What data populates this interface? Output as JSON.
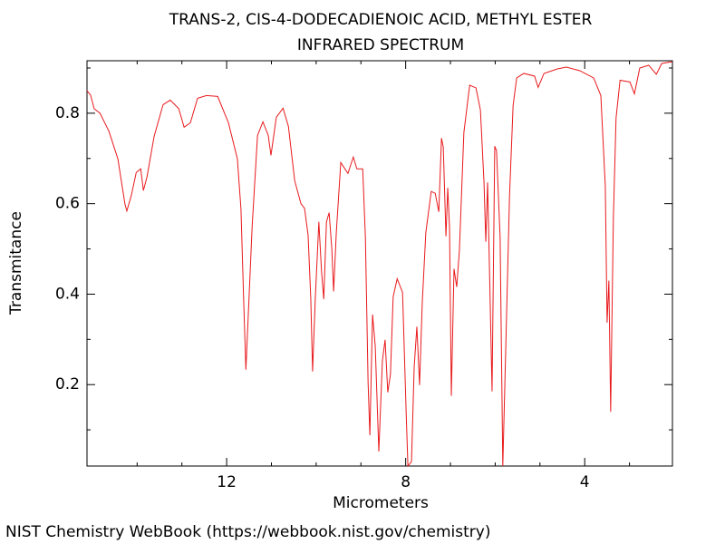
{
  "chart_data": {
    "type": "line",
    "title": "TRANS-2, CIS-4-DODECADIENOIC ACID, METHYL ESTER",
    "subtitle": "INFRARED SPECTRUM",
    "x_label": "Micrometers",
    "y_label": "Transmitance",
    "source": "NIST Chemistry WebBook (https://webbook.nist.gov/chemistry)",
    "color": "#e8191c",
    "xlim": [
      15.12,
      2.04
    ],
    "ylim": [
      0.02,
      0.916
    ],
    "xticks": [
      12,
      8,
      4
    ],
    "xminorticks": [
      14,
      13,
      11,
      10,
      9,
      7,
      6,
      5,
      3
    ],
    "yticks": [
      0.2,
      0.4,
      0.6,
      0.8
    ],
    "yminorticks": [
      0.1,
      0.3,
      0.5,
      0.7,
      0.9
    ],
    "x": [
      15.12,
      15.04,
      14.96,
      14.83,
      14.63,
      14.43,
      14.27,
      14.23,
      14.13,
      14.02,
      13.92,
      13.86,
      13.78,
      13.62,
      13.42,
      13.26,
      13.07,
      12.95,
      12.81,
      12.65,
      12.45,
      12.2,
      11.96,
      11.76,
      11.68,
      11.62,
      11.57,
      11.51,
      11.43,
      11.31,
      11.19,
      11.07,
      11.01,
      10.89,
      10.74,
      10.62,
      10.48,
      10.34,
      10.26,
      10.18,
      10.12,
      10.08,
      10.02,
      9.94,
      9.88,
      9.83,
      9.77,
      9.71,
      9.65,
      9.61,
      9.55,
      9.45,
      9.29,
      9.17,
      9.09,
      8.96,
      8.9,
      8.84,
      8.8,
      8.74,
      8.68,
      8.6,
      8.52,
      8.46,
      8.4,
      8.34,
      8.28,
      8.19,
      8.07,
      7.99,
      7.95,
      7.87,
      7.81,
      7.75,
      7.69,
      7.63,
      7.55,
      7.43,
      7.34,
      7.26,
      7.2,
      7.16,
      7.1,
      7.06,
      7.02,
      6.98,
      6.92,
      6.86,
      6.8,
      6.7,
      6.57,
      6.43,
      6.33,
      6.25,
      6.21,
      6.17,
      6.13,
      6.07,
      6.01,
      5.97,
      5.89,
      5.83,
      5.77,
      5.68,
      5.6,
      5.52,
      5.36,
      5.12,
      5.04,
      4.91,
      4.61,
      4.41,
      4.11,
      3.8,
      3.64,
      3.54,
      3.5,
      3.46,
      3.42,
      3.36,
      3.3,
      3.21,
      2.99,
      2.89,
      2.77,
      2.57,
      2.4,
      2.28,
      2.04
    ],
    "values": [
      0.85,
      0.84,
      0.81,
      0.8,
      0.76,
      0.699,
      0.598,
      0.584,
      0.618,
      0.669,
      0.677,
      0.629,
      0.659,
      0.749,
      0.819,
      0.829,
      0.81,
      0.769,
      0.779,
      0.833,
      0.839,
      0.837,
      0.779,
      0.699,
      0.588,
      0.387,
      0.233,
      0.369,
      0.55,
      0.751,
      0.781,
      0.751,
      0.707,
      0.791,
      0.811,
      0.771,
      0.651,
      0.6,
      0.59,
      0.53,
      0.389,
      0.229,
      0.389,
      0.56,
      0.45,
      0.389,
      0.56,
      0.58,
      0.5,
      0.406,
      0.536,
      0.691,
      0.667,
      0.703,
      0.677,
      0.677,
      0.526,
      0.205,
      0.088,
      0.355,
      0.285,
      0.052,
      0.253,
      0.299,
      0.183,
      0.223,
      0.394,
      0.434,
      0.404,
      0.141,
      0.02,
      0.03,
      0.239,
      0.328,
      0.199,
      0.38,
      0.536,
      0.627,
      0.623,
      0.582,
      0.745,
      0.725,
      0.528,
      0.635,
      0.546,
      0.175,
      0.456,
      0.416,
      0.496,
      0.757,
      0.862,
      0.856,
      0.807,
      0.647,
      0.516,
      0.647,
      0.466,
      0.185,
      0.727,
      0.717,
      0.526,
      0.02,
      0.257,
      0.617,
      0.817,
      0.878,
      0.888,
      0.882,
      0.857,
      0.888,
      0.898,
      0.902,
      0.894,
      0.878,
      0.839,
      0.639,
      0.337,
      0.43,
      0.14,
      0.567,
      0.789,
      0.873,
      0.869,
      0.843,
      0.9,
      0.906,
      0.886,
      0.91,
      0.914
    ]
  }
}
